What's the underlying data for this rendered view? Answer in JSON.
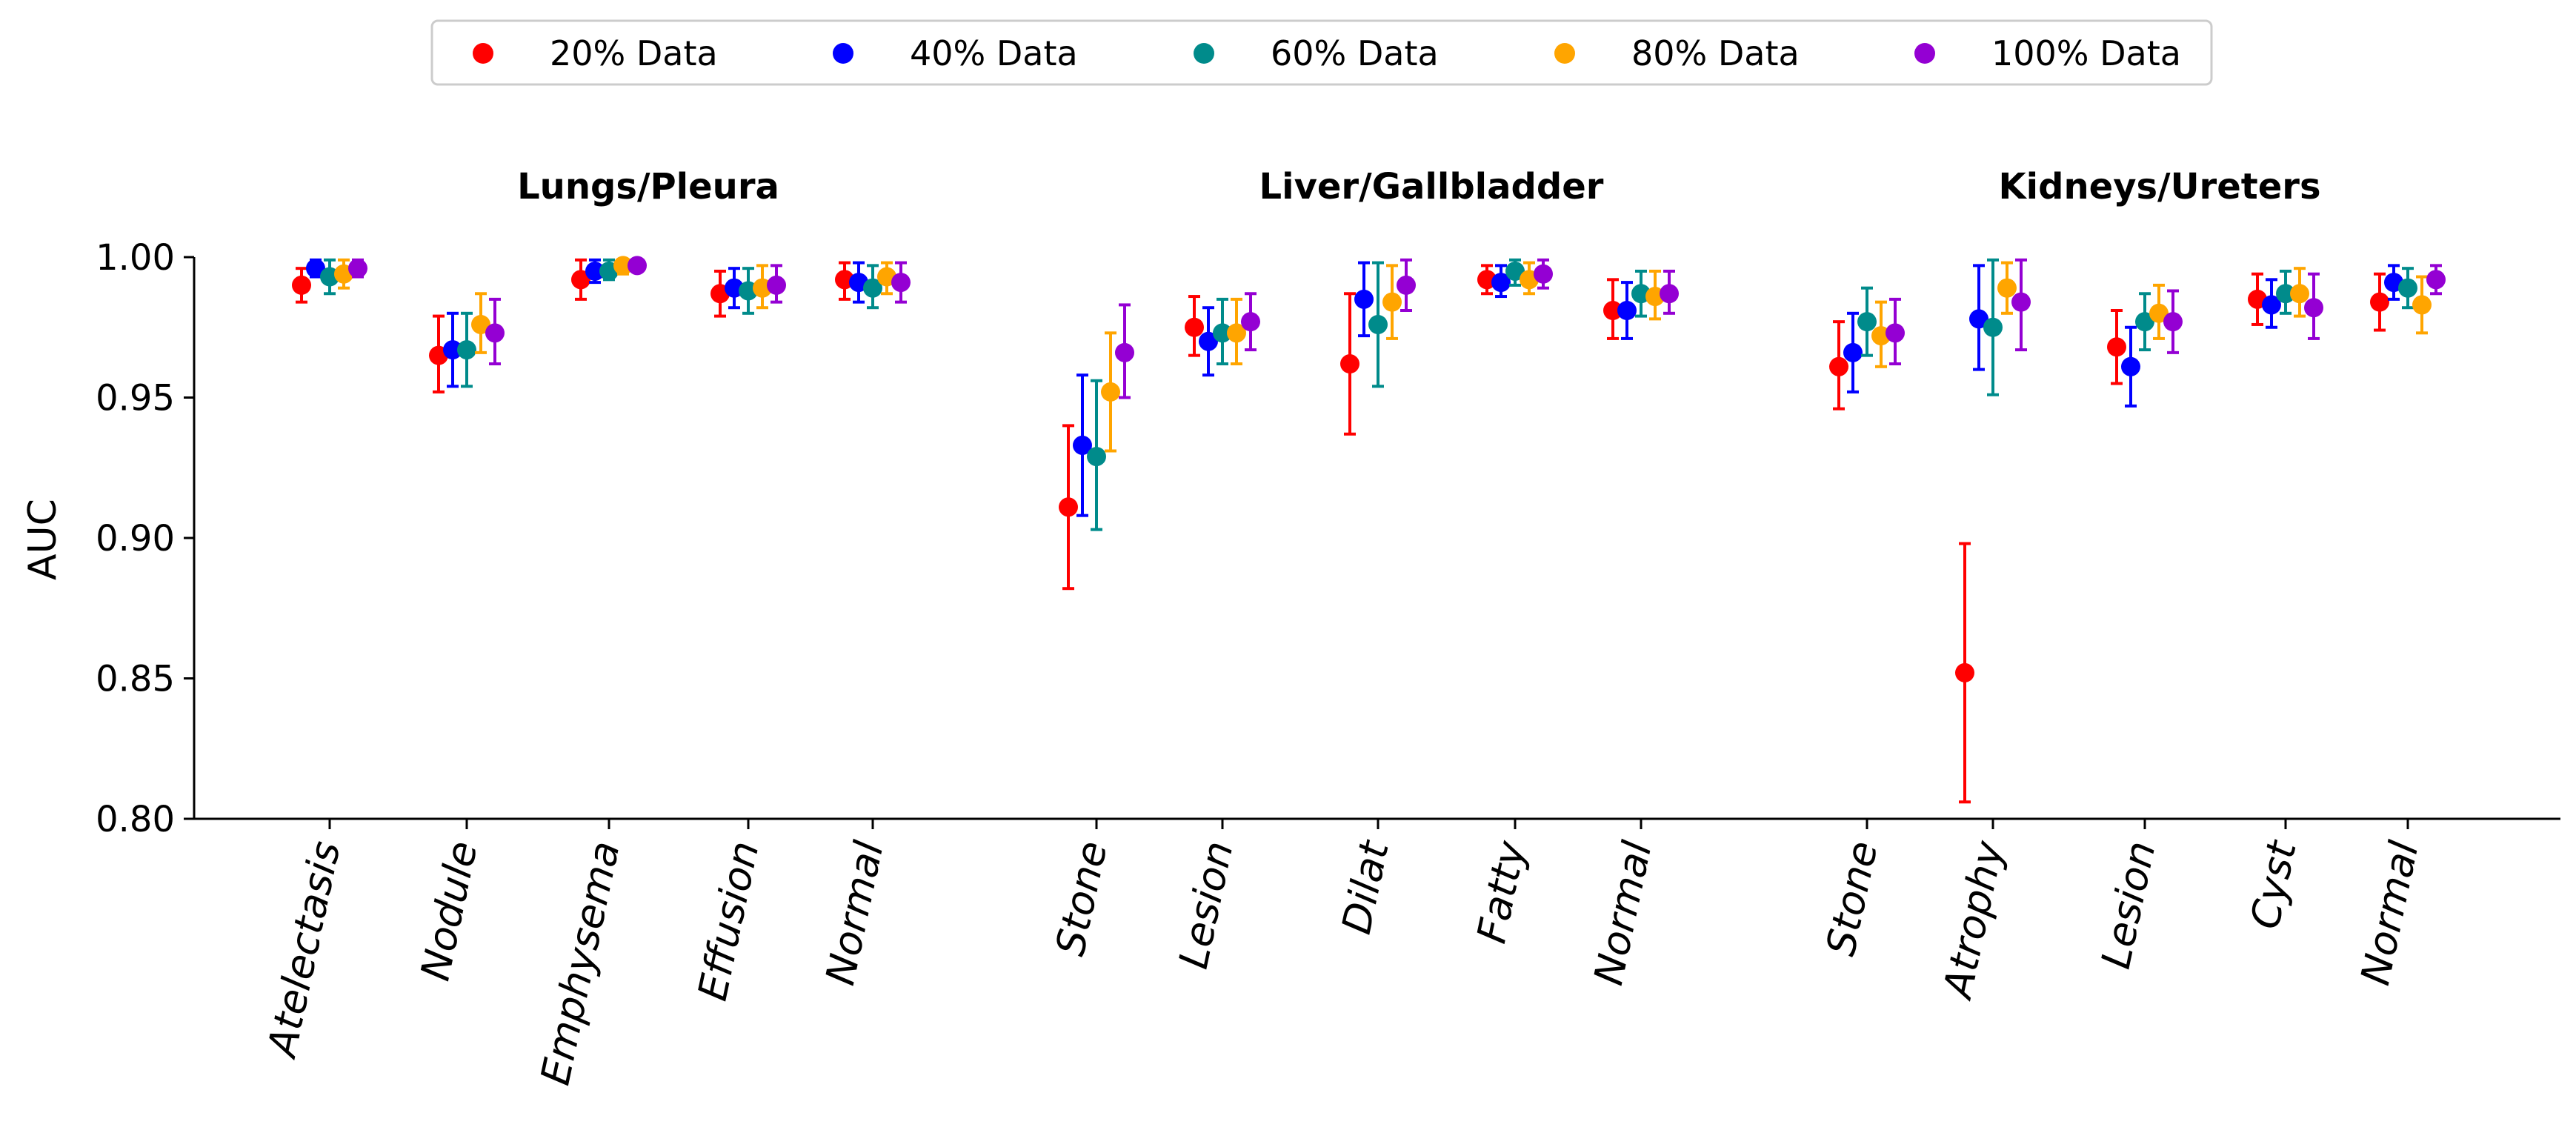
{
  "chart_data": {
    "type": "scatter",
    "ylabel": "AUC",
    "ylim": [
      0.8,
      1.0
    ],
    "yticks": [
      "0.80",
      "0.85",
      "0.90",
      "0.95",
      "1.00"
    ],
    "ytick_values": [
      0.8,
      0.85,
      0.9,
      0.95,
      1.0
    ],
    "legend_position": "top-center",
    "grid": false,
    "series": [
      {
        "name": "20% Data",
        "color": "#ff0000"
      },
      {
        "name": "40% Data",
        "color": "#0000ff"
      },
      {
        "name": "60% Data",
        "color": "#008b8b"
      },
      {
        "name": "80% Data",
        "color": "#ffa500"
      },
      {
        "name": "100% Data",
        "color": "#9400d3"
      }
    ],
    "groups": [
      {
        "title": "Lungs/Pleura",
        "categories": [
          {
            "label": "Atelectasis",
            "points": [
              {
                "v": 0.99,
                "lo": 0.984,
                "hi": 0.996
              },
              {
                "v": 0.996,
                "lo": 0.993,
                "hi": 0.999
              },
              {
                "v": 0.993,
                "lo": 0.987,
                "hi": 0.999
              },
              {
                "v": 0.994,
                "lo": 0.989,
                "hi": 0.999
              },
              {
                "v": 0.996,
                "lo": 0.993,
                "hi": 0.999
              }
            ]
          },
          {
            "label": "Nodule",
            "points": [
              {
                "v": 0.965,
                "lo": 0.952,
                "hi": 0.979
              },
              {
                "v": 0.967,
                "lo": 0.954,
                "hi": 0.98
              },
              {
                "v": 0.967,
                "lo": 0.954,
                "hi": 0.98
              },
              {
                "v": 0.976,
                "lo": 0.966,
                "hi": 0.987
              },
              {
                "v": 0.973,
                "lo": 0.962,
                "hi": 0.985
              }
            ]
          },
          {
            "label": "Emphysema",
            "points": [
              {
                "v": 0.992,
                "lo": 0.985,
                "hi": 0.999
              },
              {
                "v": 0.995,
                "lo": 0.991,
                "hi": 0.999
              },
              {
                "v": 0.995,
                "lo": 0.992,
                "hi": 0.999
              },
              {
                "v": 0.997,
                "lo": 0.994,
                "hi": 0.999
              },
              {
                "v": 0.997,
                "lo": 0.995,
                "hi": 0.999
              }
            ]
          },
          {
            "label": "Effusion",
            "points": [
              {
                "v": 0.987,
                "lo": 0.979,
                "hi": 0.995
              },
              {
                "v": 0.989,
                "lo": 0.982,
                "hi": 0.996
              },
              {
                "v": 0.988,
                "lo": 0.98,
                "hi": 0.996
              },
              {
                "v": 0.989,
                "lo": 0.982,
                "hi": 0.997
              },
              {
                "v": 0.99,
                "lo": 0.984,
                "hi": 0.997
              }
            ]
          },
          {
            "label": "Normal",
            "points": [
              {
                "v": 0.992,
                "lo": 0.985,
                "hi": 0.998
              },
              {
                "v": 0.991,
                "lo": 0.984,
                "hi": 0.998
              },
              {
                "v": 0.989,
                "lo": 0.982,
                "hi": 0.997
              },
              {
                "v": 0.993,
                "lo": 0.987,
                "hi": 0.998
              },
              {
                "v": 0.991,
                "lo": 0.984,
                "hi": 0.998
              }
            ]
          }
        ]
      },
      {
        "title": "Liver/Gallbladder",
        "categories": [
          {
            "label": "Stone",
            "points": [
              {
                "v": 0.911,
                "lo": 0.882,
                "hi": 0.94
              },
              {
                "v": 0.933,
                "lo": 0.908,
                "hi": 0.958
              },
              {
                "v": 0.929,
                "lo": 0.903,
                "hi": 0.956
              },
              {
                "v": 0.952,
                "lo": 0.931,
                "hi": 0.973
              },
              {
                "v": 0.966,
                "lo": 0.95,
                "hi": 0.983
              }
            ]
          },
          {
            "label": "Lesion",
            "points": [
              {
                "v": 0.975,
                "lo": 0.965,
                "hi": 0.986
              },
              {
                "v": 0.97,
                "lo": 0.958,
                "hi": 0.982
              },
              {
                "v": 0.973,
                "lo": 0.962,
                "hi": 0.985
              },
              {
                "v": 0.973,
                "lo": 0.962,
                "hi": 0.985
              },
              {
                "v": 0.977,
                "lo": 0.967,
                "hi": 0.987
              }
            ]
          },
          {
            "label": "Dilat",
            "points": [
              {
                "v": 0.962,
                "lo": 0.937,
                "hi": 0.987
              },
              {
                "v": 0.985,
                "lo": 0.972,
                "hi": 0.998
              },
              {
                "v": 0.976,
                "lo": 0.954,
                "hi": 0.998
              },
              {
                "v": 0.984,
                "lo": 0.971,
                "hi": 0.997
              },
              {
                "v": 0.99,
                "lo": 0.981,
                "hi": 0.999
              }
            ]
          },
          {
            "label": "Fatty",
            "points": [
              {
                "v": 0.992,
                "lo": 0.987,
                "hi": 0.997
              },
              {
                "v": 0.991,
                "lo": 0.986,
                "hi": 0.997
              },
              {
                "v": 0.995,
                "lo": 0.99,
                "hi": 0.999
              },
              {
                "v": 0.992,
                "lo": 0.987,
                "hi": 0.998
              },
              {
                "v": 0.994,
                "lo": 0.989,
                "hi": 0.999
              }
            ]
          },
          {
            "label": "Normal",
            "points": [
              {
                "v": 0.981,
                "lo": 0.971,
                "hi": 0.992
              },
              {
                "v": 0.981,
                "lo": 0.971,
                "hi": 0.991
              },
              {
                "v": 0.987,
                "lo": 0.979,
                "hi": 0.995
              },
              {
                "v": 0.986,
                "lo": 0.978,
                "hi": 0.995
              },
              {
                "v": 0.987,
                "lo": 0.98,
                "hi": 0.995
              }
            ]
          }
        ]
      },
      {
        "title": "Kidneys/Ureters",
        "categories": [
          {
            "label": "Stone",
            "points": [
              {
                "v": 0.961,
                "lo": 0.946,
                "hi": 0.977
              },
              {
                "v": 0.966,
                "lo": 0.952,
                "hi": 0.98
              },
              {
                "v": 0.977,
                "lo": 0.965,
                "hi": 0.989
              },
              {
                "v": 0.972,
                "lo": 0.961,
                "hi": 0.984
              },
              {
                "v": 0.973,
                "lo": 0.962,
                "hi": 0.985
              }
            ]
          },
          {
            "label": "Atrophy",
            "points": [
              {
                "v": 0.852,
                "lo": 0.806,
                "hi": 0.898
              },
              {
                "v": 0.978,
                "lo": 0.96,
                "hi": 0.997
              },
              {
                "v": 0.975,
                "lo": 0.951,
                "hi": 0.999
              },
              {
                "v": 0.989,
                "lo": 0.98,
                "hi": 0.998
              },
              {
                "v": 0.984,
                "lo": 0.967,
                "hi": 0.999
              }
            ]
          },
          {
            "label": "Lesion",
            "points": [
              {
                "v": 0.968,
                "lo": 0.955,
                "hi": 0.981
              },
              {
                "v": 0.961,
                "lo": 0.947,
                "hi": 0.975
              },
              {
                "v": 0.977,
                "lo": 0.967,
                "hi": 0.987
              },
              {
                "v": 0.98,
                "lo": 0.971,
                "hi": 0.99
              },
              {
                "v": 0.977,
                "lo": 0.966,
                "hi": 0.988
              }
            ]
          },
          {
            "label": "Cyst",
            "points": [
              {
                "v": 0.985,
                "lo": 0.976,
                "hi": 0.994
              },
              {
                "v": 0.983,
                "lo": 0.975,
                "hi": 0.992
              },
              {
                "v": 0.987,
                "lo": 0.98,
                "hi": 0.995
              },
              {
                "v": 0.987,
                "lo": 0.979,
                "hi": 0.996
              },
              {
                "v": 0.982,
                "lo": 0.971,
                "hi": 0.994
              }
            ]
          },
          {
            "label": "Normal",
            "points": [
              {
                "v": 0.984,
                "lo": 0.974,
                "hi": 0.994
              },
              {
                "v": 0.991,
                "lo": 0.985,
                "hi": 0.997
              },
              {
                "v": 0.989,
                "lo": 0.982,
                "hi": 0.996
              },
              {
                "v": 0.983,
                "lo": 0.973,
                "hi": 0.993
              },
              {
                "v": 0.992,
                "lo": 0.987,
                "hi": 0.997
              }
            ]
          }
        ]
      }
    ]
  }
}
